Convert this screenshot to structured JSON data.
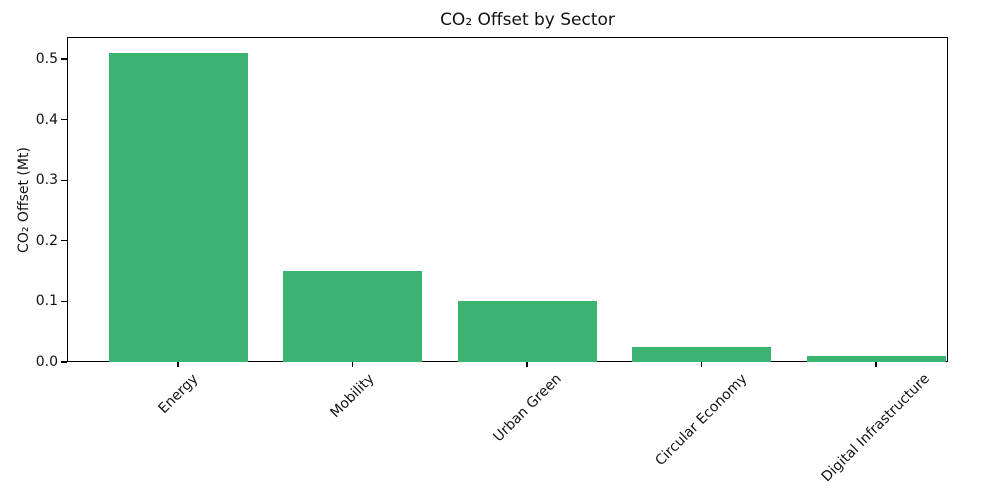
{
  "chart_data": {
    "type": "bar",
    "title": "CO₂ Offset by Sector",
    "ylabel": "CO₂ Offset (Mt)",
    "xlabel": "",
    "categories": [
      "Energy",
      "Mobility",
      "Urban Green",
      "Circular Economy",
      "Digital Infrastructure"
    ],
    "values": [
      0.51,
      0.15,
      0.1,
      0.025,
      0.01
    ],
    "bar_color": "#3cb371",
    "background_color": "#ffffff",
    "axis_color": "#000000",
    "ylim": [
      0,
      0.5365
    ],
    "yticks": [
      0.0,
      0.1,
      0.2,
      0.3,
      0.4,
      0.5
    ],
    "ytick_labels": [
      "0.0",
      "0.1",
      "0.2",
      "0.3",
      "0.4",
      "0.5"
    ],
    "x_tick_rotation_deg": 45,
    "grid": false,
    "legend": null
  }
}
